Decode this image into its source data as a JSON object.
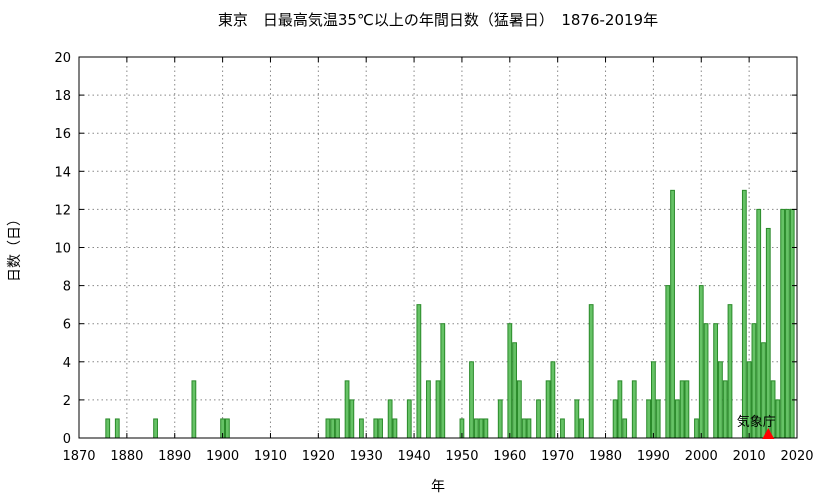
{
  "chart_data": {
    "type": "bar",
    "title": "東京　日最高気温35℃以上の年間日数（猛暑日）　1876-2019年",
    "xlabel": "年",
    "ylabel": "日数（日）",
    "xlim": [
      1870,
      2020
    ],
    "ylim": [
      0,
      20
    ],
    "x_ticks": [
      1870,
      1880,
      1890,
      1900,
      1910,
      1920,
      1930,
      1940,
      1950,
      1960,
      1970,
      1980,
      1990,
      2000,
      2010,
      2020
    ],
    "y_ticks": [
      0,
      2,
      4,
      6,
      8,
      10,
      12,
      14,
      16,
      18,
      20
    ],
    "grid": true,
    "bar_color": "#66c266",
    "bar_edge_color": "#2a8a2a",
    "annotation": {
      "text": "気象庁",
      "x": 2014,
      "marker": "triangle",
      "color": "#ff0000"
    },
    "points": [
      {
        "x": 1876,
        "y": 1
      },
      {
        "x": 1878,
        "y": 1
      },
      {
        "x": 1886,
        "y": 1
      },
      {
        "x": 1894,
        "y": 3
      },
      {
        "x": 1900,
        "y": 1
      },
      {
        "x": 1901,
        "y": 1
      },
      {
        "x": 1922,
        "y": 1
      },
      {
        "x": 1923,
        "y": 1
      },
      {
        "x": 1924,
        "y": 1
      },
      {
        "x": 1926,
        "y": 3
      },
      {
        "x": 1927,
        "y": 2
      },
      {
        "x": 1929,
        "y": 1
      },
      {
        "x": 1932,
        "y": 1
      },
      {
        "x": 1933,
        "y": 1
      },
      {
        "x": 1935,
        "y": 2
      },
      {
        "x": 1936,
        "y": 1
      },
      {
        "x": 1939,
        "y": 2
      },
      {
        "x": 1941,
        "y": 7
      },
      {
        "x": 1943,
        "y": 3
      },
      {
        "x": 1945,
        "y": 3
      },
      {
        "x": 1946,
        "y": 6
      },
      {
        "x": 1950,
        "y": 1
      },
      {
        "x": 1952,
        "y": 4
      },
      {
        "x": 1953,
        "y": 1
      },
      {
        "x": 1954,
        "y": 1
      },
      {
        "x": 1955,
        "y": 1
      },
      {
        "x": 1958,
        "y": 2
      },
      {
        "x": 1960,
        "y": 6
      },
      {
        "x": 1961,
        "y": 5
      },
      {
        "x": 1962,
        "y": 3
      },
      {
        "x": 1963,
        "y": 1
      },
      {
        "x": 1964,
        "y": 1
      },
      {
        "x": 1966,
        "y": 2
      },
      {
        "x": 1968,
        "y": 3
      },
      {
        "x": 1969,
        "y": 4
      },
      {
        "x": 1971,
        "y": 1
      },
      {
        "x": 1974,
        "y": 2
      },
      {
        "x": 1975,
        "y": 1
      },
      {
        "x": 1977,
        "y": 7
      },
      {
        "x": 1982,
        "y": 2
      },
      {
        "x": 1983,
        "y": 3
      },
      {
        "x": 1984,
        "y": 1
      },
      {
        "x": 1986,
        "y": 3
      },
      {
        "x": 1989,
        "y": 2
      },
      {
        "x": 1990,
        "y": 4
      },
      {
        "x": 1991,
        "y": 2
      },
      {
        "x": 1993,
        "y": 8
      },
      {
        "x": 1994,
        "y": 13
      },
      {
        "x": 1995,
        "y": 2
      },
      {
        "x": 1996,
        "y": 3
      },
      {
        "x": 1997,
        "y": 3
      },
      {
        "x": 1999,
        "y": 1
      },
      {
        "x": 2000,
        "y": 8
      },
      {
        "x": 2001,
        "y": 6
      },
      {
        "x": 2003,
        "y": 6
      },
      {
        "x": 2004,
        "y": 4
      },
      {
        "x": 2005,
        "y": 3
      },
      {
        "x": 2006,
        "y": 7
      },
      {
        "x": 2009,
        "y": 13
      },
      {
        "x": 2010,
        "y": 4
      },
      {
        "x": 2011,
        "y": 6
      },
      {
        "x": 2012,
        "y": 12
      },
      {
        "x": 2013,
        "y": 5
      },
      {
        "x": 2014,
        "y": 11
      },
      {
        "x": 2015,
        "y": 3
      },
      {
        "x": 2016,
        "y": 2
      },
      {
        "x": 2017,
        "y": 12
      },
      {
        "x": 2018,
        "y": 12
      },
      {
        "x": 2019,
        "y": 12
      }
    ]
  }
}
